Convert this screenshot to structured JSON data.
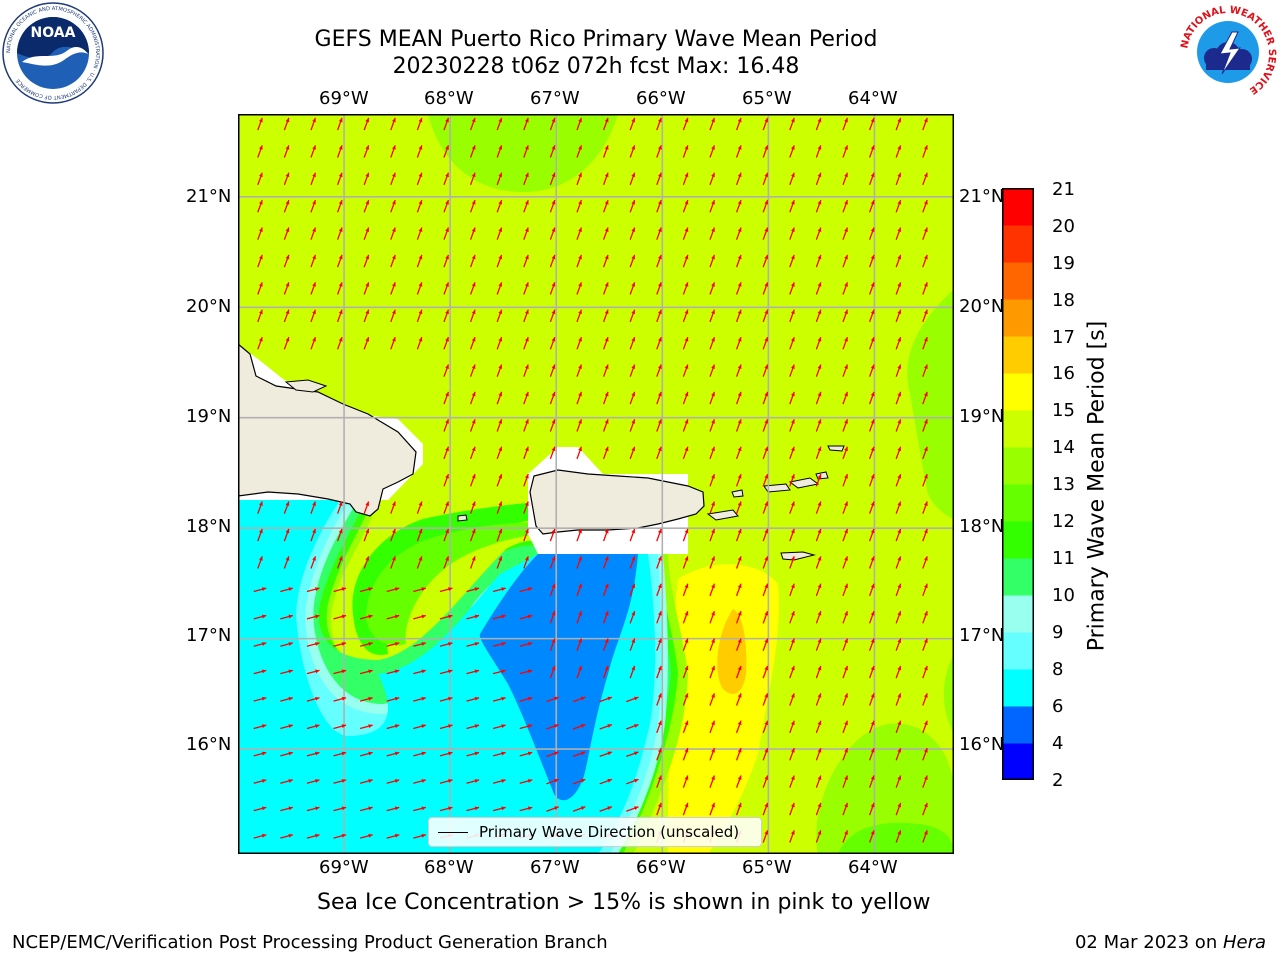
{
  "header": {
    "title_line1": "GEFS MEAN Puerto Rico Primary Wave Mean Period",
    "title_line2": "20230228 t06z 072h fcst   Max: 16.48"
  },
  "logos": {
    "left": {
      "name": "noaa-logo",
      "text": "NOAA",
      "ring_text": "NATIONAL OCEANIC AND ATMOSPHERIC ADMINISTRATION · U.S. DEPARTMENT OF COMMERCE"
    },
    "right": {
      "name": "national-weather-service-logo",
      "ring_text": "NATIONAL WEATHER SERVICE"
    }
  },
  "map": {
    "lon_labels": [
      "69°W",
      "68°W",
      "67°W",
      "66°W",
      "65°W",
      "64°W"
    ],
    "lat_labels": [
      "21°N",
      "20°N",
      "19°N",
      "18°N",
      "17°N",
      "16°N"
    ],
    "lon_ticks": [
      -69,
      -68,
      -67,
      -66,
      -65,
      -64
    ],
    "lat_ticks": [
      21,
      20,
      19,
      18,
      17,
      16
    ],
    "lon_range": [
      -70,
      -63.25
    ],
    "lat_range": [
      15.05,
      21.75
    ],
    "arrow_color": "#ff0000",
    "land_color": "#efebdd",
    "grid": true
  },
  "colorbar": {
    "label": "Primary Wave Mean Period [s]",
    "ticks": [
      "21",
      "20",
      "19",
      "18",
      "17",
      "16",
      "15",
      "14",
      "13",
      "12",
      "11",
      "10",
      "9",
      "8",
      "6",
      "4",
      "2"
    ],
    "levels": [
      2,
      4,
      6,
      8,
      9,
      10,
      11,
      12,
      13,
      14,
      15,
      16,
      17,
      18,
      19,
      20,
      21
    ],
    "colors": [
      "#0000ff",
      "#0066ff",
      "#00ffff",
      "#66ffff",
      "#99ffee",
      "#33ff66",
      "#33ff00",
      "#66ff00",
      "#99ff00",
      "#ccff00",
      "#ffff00",
      "#ffcc00",
      "#ff9900",
      "#ff6600",
      "#ff3300",
      "#ff0000"
    ]
  },
  "legend": {
    "label": "Primary Wave Direction (unscaled)"
  },
  "caption": "Sea Ice Concentration > 15% is shown in pink to yellow",
  "footer": {
    "left": "NCEP/EMC/Verification Post Processing Product Generation Branch",
    "right_prefix": "02 Mar 2023 on ",
    "right_machine": "Hera"
  }
}
